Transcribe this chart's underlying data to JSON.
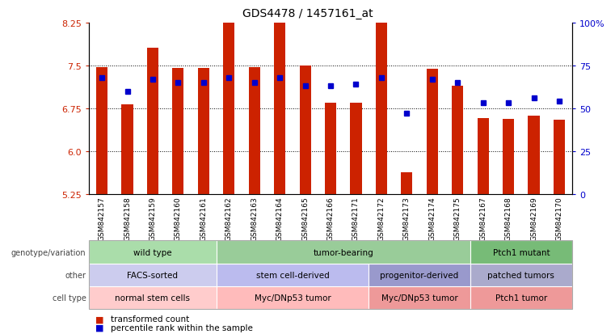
{
  "title": "GDS4478 / 1457161_at",
  "samples": [
    "GSM842157",
    "GSM842158",
    "GSM842159",
    "GSM842160",
    "GSM842161",
    "GSM842162",
    "GSM842163",
    "GSM842164",
    "GSM842165",
    "GSM842166",
    "GSM842171",
    "GSM842172",
    "GSM842173",
    "GSM842174",
    "GSM842175",
    "GSM842167",
    "GSM842168",
    "GSM842169",
    "GSM842170"
  ],
  "bar_values": [
    7.47,
    6.82,
    7.81,
    7.45,
    7.46,
    8.37,
    7.47,
    8.38,
    7.5,
    6.84,
    6.84,
    8.33,
    5.62,
    7.44,
    7.15,
    6.57,
    6.56,
    6.62,
    6.55
  ],
  "dot_values": [
    68,
    60,
    67,
    65,
    65,
    68,
    65,
    68,
    63,
    63,
    64,
    68,
    47,
    67,
    65,
    53,
    53,
    56,
    54
  ],
  "ylim_left": [
    5.25,
    8.25
  ],
  "ylim_right": [
    0,
    100
  ],
  "yticks_left": [
    5.25,
    6.0,
    6.75,
    7.5,
    8.25
  ],
  "yticks_right": [
    0,
    25,
    50,
    75,
    100
  ],
  "ytick_right_labels": [
    "0",
    "25",
    "50",
    "75",
    "100%"
  ],
  "bar_color": "#cc2200",
  "dot_color": "#0000cc",
  "annotation_rows": [
    {
      "label": "genotype/variation",
      "groups": [
        {
          "text": "wild type",
          "start": 0,
          "end": 5,
          "color": "#aaddaa"
        },
        {
          "text": "tumor-bearing",
          "start": 5,
          "end": 15,
          "color": "#99cc99"
        },
        {
          "text": "Ptch1 mutant",
          "start": 15,
          "end": 19,
          "color": "#77bb77"
        }
      ]
    },
    {
      "label": "other",
      "groups": [
        {
          "text": "FACS-sorted",
          "start": 0,
          "end": 5,
          "color": "#ccccee"
        },
        {
          "text": "stem cell-derived",
          "start": 5,
          "end": 11,
          "color": "#bbbbee"
        },
        {
          "text": "progenitor-derived",
          "start": 11,
          "end": 15,
          "color": "#9999cc"
        },
        {
          "text": "patched tumors",
          "start": 15,
          "end": 19,
          "color": "#aaaacc"
        }
      ]
    },
    {
      "label": "cell type",
      "groups": [
        {
          "text": "normal stem cells",
          "start": 0,
          "end": 5,
          "color": "#ffcccc"
        },
        {
          "text": "Myc/DNp53 tumor",
          "start": 5,
          "end": 11,
          "color": "#ffbbbb"
        },
        {
          "text": "Myc/DNp53 tumor",
          "start": 11,
          "end": 15,
          "color": "#ee9999"
        },
        {
          "text": "Ptch1 tumor",
          "start": 15,
          "end": 19,
          "color": "#ee9999"
        }
      ]
    }
  ],
  "legend_items": [
    {
      "label": "transformed count",
      "color": "#cc2200"
    },
    {
      "label": "percentile rank within the sample",
      "color": "#0000cc"
    }
  ]
}
